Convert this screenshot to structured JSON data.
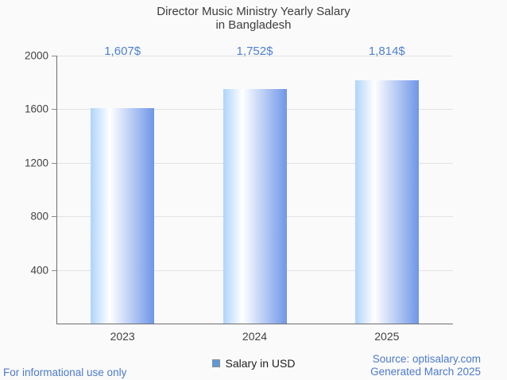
{
  "title": {
    "line1": "Director Music Ministry Yearly Salary",
    "line2": "in Bangladesh"
  },
  "chart_data": {
    "type": "bar",
    "categories": [
      "2023",
      "2024",
      "2025"
    ],
    "series": [
      {
        "name": "Salary in USD",
        "values": [
          1607,
          1752,
          1814
        ]
      }
    ],
    "value_labels": [
      "1,607$",
      "1,752$",
      "1,814$"
    ],
    "title": "Director Music Ministry Yearly Salary in Bangladesh",
    "xlabel": "",
    "ylabel": "",
    "ylim": [
      0,
      2000
    ],
    "yticks": [
      400,
      800,
      1200,
      1600,
      2000
    ],
    "grid": true,
    "legend_position": "bottom"
  },
  "legend": {
    "label": "Salary in USD",
    "marker_color": "#5f9ad8"
  },
  "footer": {
    "disclaimer": "For informational use only",
    "source": "Source: optisalary.com",
    "generated": "Generated March 2025"
  },
  "colors": {
    "bar_gradient_left": "#aed4fb",
    "bar_gradient_mid": "#ffffff",
    "bar_gradient_right": "#6f96e8",
    "value_label": "#4f81d2",
    "footer_text": "#4d7ac9",
    "axis": "#6e6e6e",
    "gridline": "#e3e3e3",
    "text": "#3d3d3d"
  }
}
